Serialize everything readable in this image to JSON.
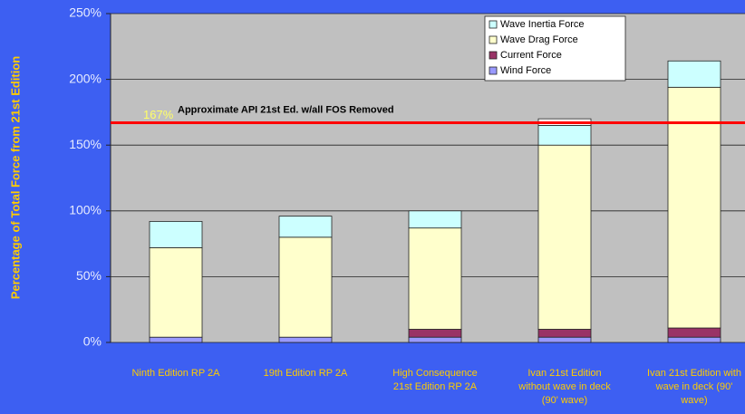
{
  "chart_data": {
    "type": "stacked_bar",
    "y_label": "Percentage of Total Force from 21st Edition",
    "categories": [
      "Ninth Edition RP 2A",
      "19th Edition RP 2A",
      "High Consequence\n21st Edition RP 2A",
      "Ivan 21st Edition\nwithout wave in deck\n(90' wave)",
      "Ivan 21st Edition with\nwave in deck (90'\nwave)"
    ],
    "series": [
      {
        "name": "Wind Force",
        "color": "#9999ff",
        "values": [
          4,
          4,
          4,
          4,
          4
        ]
      },
      {
        "name": "Current Force",
        "color": "#993366",
        "values": [
          0,
          0,
          6,
          6,
          7
        ]
      },
      {
        "name": "Wave Drag Force",
        "color": "#ffffcc",
        "values": [
          68,
          76,
          77,
          140,
          183
        ]
      },
      {
        "name": "Wave Inertia Force",
        "color": "#ccffff",
        "values": [
          20,
          16,
          13,
          15,
          20
        ]
      },
      {
        "color": "#ffffff",
        "values": [
          null,
          null,
          null,
          5,
          null
        ]
      }
    ],
    "ylim": [
      0,
      250
    ],
    "yticks": [
      {
        "value": 0,
        "label": "0%"
      },
      {
        "value": 50,
        "label": "50%"
      },
      {
        "value": 100,
        "label": "100%"
      },
      {
        "value": 150,
        "label": "150%"
      },
      {
        "value": 200,
        "label": "200%"
      },
      {
        "value": 250,
        "label": "250%"
      }
    ],
    "grid": true,
    "reference_line": {
      "value": 167,
      "label": "167%",
      "text": "Approximate API 21st Ed. w/all FOS Removed",
      "color": "#ff0000"
    },
    "legend": "top-right"
  }
}
